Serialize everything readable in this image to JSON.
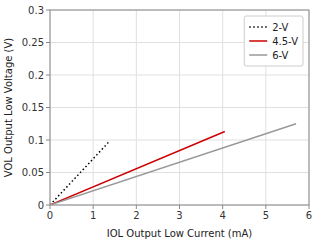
{
  "chart_data": {
    "type": "line",
    "x_label": "IOL Output Low Current (mA)",
    "y_label": "VOL Output Low Voltage (V)",
    "series": [
      {
        "name": "2-V",
        "color": "#000000",
        "line_style": "dotted",
        "x": [
          0,
          1.35
        ],
        "values": [
          0,
          0.096
        ]
      },
      {
        "name": "4.5-V",
        "color": "#cc0000",
        "line_style": "solid",
        "x": [
          0,
          4.05
        ],
        "values": [
          0,
          0.113
        ]
      },
      {
        "name": "6-V",
        "color": "#999999",
        "line_style": "solid",
        "x": [
          0,
          5.7
        ],
        "values": [
          0,
          0.125
        ]
      }
    ],
    "xlim": [
      0,
      6
    ],
    "ylim": [
      0,
      0.3
    ],
    "xticks": [
      0,
      1,
      2,
      3,
      4,
      5,
      6
    ],
    "yticks": [
      0,
      0.05,
      0.1,
      0.15,
      0.2,
      0.25,
      0.3
    ],
    "grid": true,
    "legend": "upper right"
  }
}
